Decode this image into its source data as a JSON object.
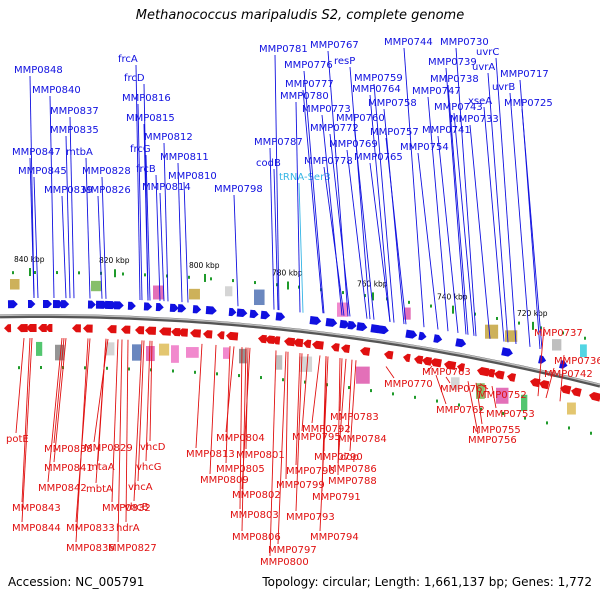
{
  "title": "Methanococcus maripaludis S2, complete genome",
  "footer": {
    "accession": "Accession: NC_005791",
    "topology": "Topology: circular; Length: 1,661,137 bp; Genes: 1,772"
  },
  "colors": {
    "forward_strand": "#1010e0",
    "reverse_strand": "#e01010",
    "rna": "#35b5e5",
    "backbone": "#888888",
    "gc_tick": "#1e9a2a"
  },
  "ticks": [
    {
      "label": "840 kbp"
    },
    {
      "label": "820 kbp"
    },
    {
      "label": "800 kbp"
    },
    {
      "label": "780 kbp"
    },
    {
      "label": "760 kbp"
    },
    {
      "label": "740 kbp"
    },
    {
      "label": "720 kbp"
    }
  ],
  "top_labels": [
    "MMP0848",
    "MMP0840",
    "MMP0837",
    "MMP0835",
    "MMP0847",
    "mtbA",
    "MMP0845",
    "MMP0839",
    "MMP0828",
    "MMP0826",
    "frcA",
    "frcD",
    "MMP0816",
    "MMP0815",
    "MMP0812",
    "frcG",
    "MMP0811",
    "frcB",
    "MMP0810",
    "MMP0814",
    "MMP0798",
    "MMP0787",
    "codB",
    "tRNA-Ser3",
    "MMP0781",
    "MMP0767",
    "MMP0776",
    "resP",
    "MMP0777",
    "MMP0759",
    "MMP0780",
    "MMP0764",
    "MMP0773",
    "MMP0758",
    "MMP0760",
    "MMP0772",
    "MMP0757",
    "MMP0769",
    "MMP0778",
    "MMP0765",
    "MMP0754",
    "MMP0744",
    "MMP0730",
    "MMP0739",
    "uvrC",
    "uvrA",
    "MMP0738",
    "MMP0717",
    "MMP0747",
    "uvrB",
    "MMP0743",
    "xseA",
    "MMP0725",
    "MMP0733",
    "MMP0741"
  ],
  "bottom_labels": [
    "potE",
    "MMP0838",
    "MMP0841",
    "MMP0842",
    "MMP0843",
    "MMP0844",
    "MMP0836",
    "MMP0833",
    "mtaA",
    "mbtA",
    "MMP0832",
    "MMP0829",
    "vhcD",
    "vhcG",
    "vhcA",
    "vhcB",
    "hdrA",
    "MMP0827",
    "MMP0813",
    "MMP0804",
    "MMP0801",
    "MMP0805",
    "MMP0809",
    "MMP0802",
    "MMP0803",
    "MMP0806",
    "MMP0800",
    "MMP0797",
    "MMP0799",
    "MMP0796",
    "MMP0795",
    "MMP0792",
    "MMP0790",
    "MMP0791",
    "MMP0793",
    "MMP0794",
    "MMP0783",
    "MMP0784",
    "dop",
    "MMP0786",
    "MMP0788",
    "MMP0770",
    "MMP0763",
    "MMP0761",
    "MMP0762",
    "MMP0752",
    "MMP0755",
    "MMP0753",
    "MMP0756",
    "MMP0742",
    "MMP0737",
    "MMP0736"
  ]
}
